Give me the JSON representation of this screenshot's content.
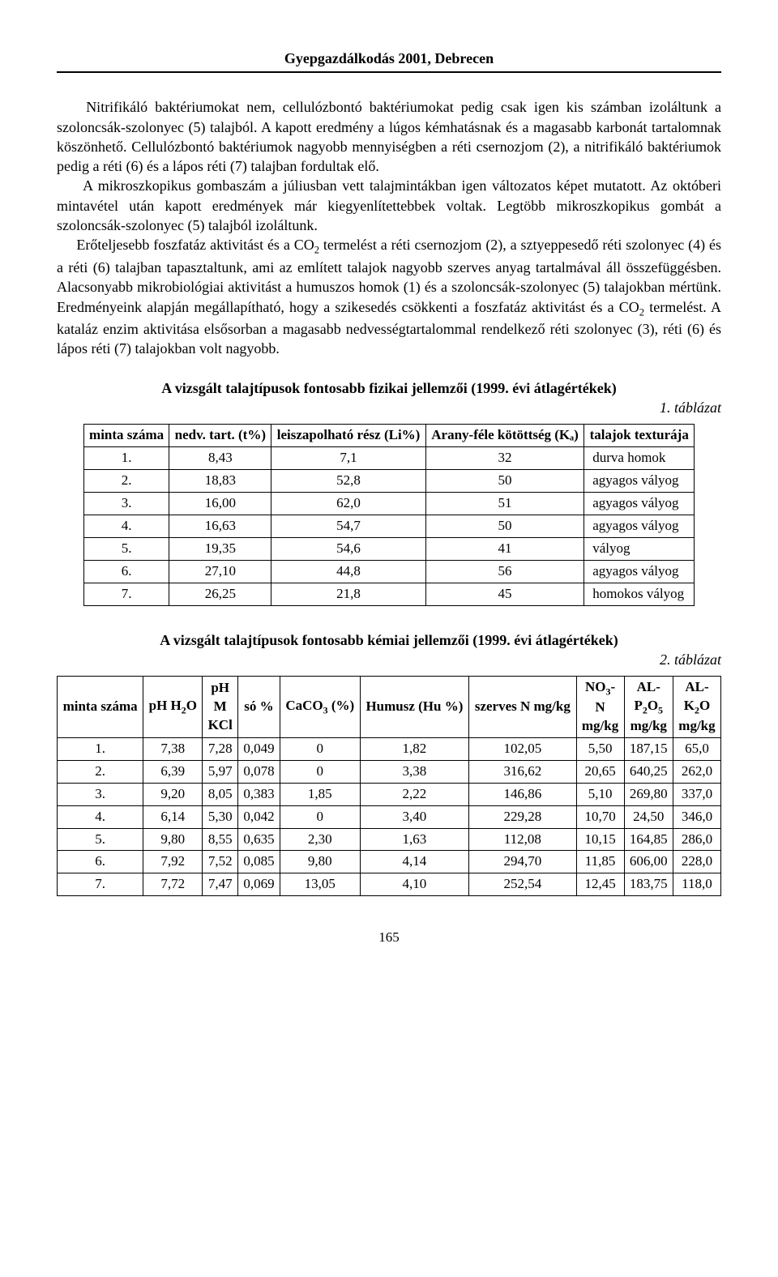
{
  "header": "Gyepgazdálkodás 2001, Debrecen",
  "paragraph": "Nitrifikáló baktériumokat nem, cellulózbontó baktériumokat pedig csak igen kis számban izoláltunk a szoloncsák-szolonyec (5) talajból. A kapott eredmény a lúgos kémhatásnak és a magasabb karbonát tartalomnak köszönhető. Cellulózbontó baktériumok nagyobb mennyiségben a réti csernozjom (2), a nitrifikáló baktériumok pedig a réti (6) és a lápos réti (7) talajban fordultak elő.\n    A mikroszkopikus gombaszám a júliusban vett talajmintákban igen változatos képet mutatott. Az októberi mintavétel után kapott eredmények már kiegyenlítettebbek voltak. Legtöbb mikroszkopikus gombát a szoloncsák-szolonyec (5) talajból izoláltunk.\n    Erőteljesebb foszfatáz aktivitást és a CO₂ termelést a réti csernozjom (2), a sztyeppesedő réti szolonyec (4) és a réti (6) talajban tapasztaltunk, ami az említett talajok nagyobb szerves anyag tartalmával áll összefüggésben. Alacsonyabb mikrobiológiai aktivitást a humuszos homok (1) és a szoloncsák-szolonyec (5) talajokban mértünk. Eredményeink alapján megállapítható, hogy a szikesedés csökkenti a foszfatáz aktivitást és a CO₂ termelést. A kataláz enzim aktivitása elsősorban a magasabb nedvességtartalommal rendelkező réti szolonyec (3), réti (6) és lápos réti (7) talajokban volt nagyobb.",
  "section1_title": "A vizsgált talajtípusok fontosabb fizikai jellemzői (1999. évi átlagértékek)",
  "table1_ref": "1. táblázat",
  "table1": {
    "columns": [
      "minta száma",
      "nedv. tart. (t%)",
      "leiszapolható rész (Li%)",
      "Arany-féle kötöttség (Kₐ)",
      "talajok texturája"
    ],
    "rows": [
      [
        "1.",
        "8,43",
        "7,1",
        "32",
        "durva homok"
      ],
      [
        "2.",
        "18,83",
        "52,8",
        "50",
        "agyagos vályog"
      ],
      [
        "3.",
        "16,00",
        "62,0",
        "51",
        "agyagos vályog"
      ],
      [
        "4.",
        "16,63",
        "54,7",
        "50",
        "agyagos vályog"
      ],
      [
        "5.",
        "19,35",
        "54,6",
        "41",
        "vályog"
      ],
      [
        "6.",
        "27,10",
        "44,8",
        "56",
        "agyagos vályog"
      ],
      [
        "7.",
        "26,25",
        "21,8",
        "45",
        "homokos vályog"
      ]
    ]
  },
  "section2_title": "A vizsgált talajtípusok fontosabb kémiai jellemzői (1999. évi átlagértékek)",
  "table2_ref": "2. táblázat",
  "table2": {
    "columns": [
      "minta száma",
      "pH H₂O",
      "pH M KCl",
      "só %",
      "CaCO₃ (%)",
      "Humusz (Hu %)",
      "szerves N mg/kg",
      "NO₃- N mg/kg",
      "AL- P₂O₅ mg/kg",
      "AL- K₂O mg/kg"
    ],
    "rows": [
      [
        "1.",
        "7,38",
        "7,28",
        "0,049",
        "0",
        "1,82",
        "102,05",
        "5,50",
        "187,15",
        "65,0"
      ],
      [
        "2.",
        "6,39",
        "5,97",
        "0,078",
        "0",
        "3,38",
        "316,62",
        "20,65",
        "640,25",
        "262,0"
      ],
      [
        "3.",
        "9,20",
        "8,05",
        "0,383",
        "1,85",
        "2,22",
        "146,86",
        "5,10",
        "269,80",
        "337,0"
      ],
      [
        "4.",
        "6,14",
        "5,30",
        "0,042",
        "0",
        "3,40",
        "229,28",
        "10,70",
        "24,50",
        "346,0"
      ],
      [
        "5.",
        "9,80",
        "8,55",
        "0,635",
        "2,30",
        "1,63",
        "112,08",
        "10,15",
        "164,85",
        "286,0"
      ],
      [
        "6.",
        "7,92",
        "7,52",
        "0,085",
        "9,80",
        "4,14",
        "294,70",
        "11,85",
        "606,00",
        "228,0"
      ],
      [
        "7.",
        "7,72",
        "7,47",
        "0,069",
        "13,05",
        "4,10",
        "252,54",
        "12,45",
        "183,75",
        "118,0"
      ]
    ]
  },
  "page_number": "165"
}
